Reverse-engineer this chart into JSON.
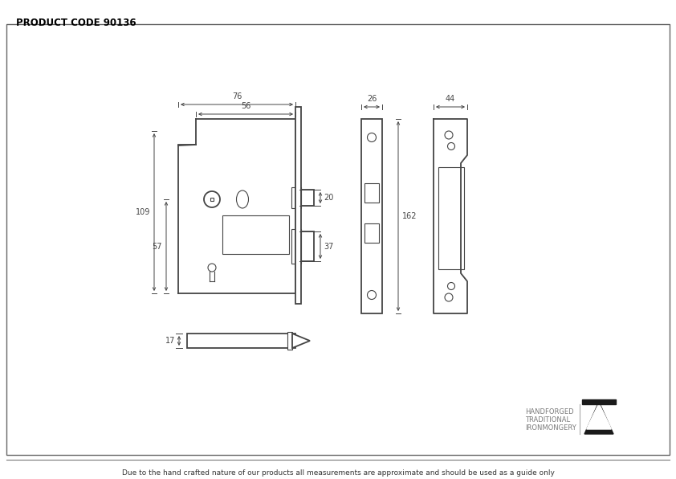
{
  "title": "PRODUCT CODE 90136",
  "footer": "Due to the hand crafted nature of our products all measurements are approximate and should be used as a guide only",
  "bg_color": "#ffffff",
  "line_color": "#444444",
  "logo_text1": "HANDFORGED",
  "logo_text2": "TRADITIONAL",
  "logo_text3": "IRONMONGERY",
  "dim_76": "76",
  "dim_56": "56",
  "dim_109": "109",
  "dim_57": "57",
  "dim_20": "20",
  "dim_37": "37",
  "dim_17": "17",
  "dim_26": "26",
  "dim_162": "162",
  "dim_44": "44"
}
